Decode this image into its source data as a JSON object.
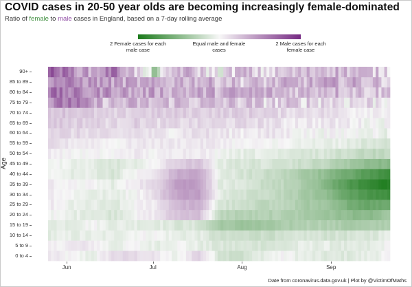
{
  "title": "COVID cases in 20-50 year olds are becoming increasingly female-dominated",
  "subtitle": {
    "prefix": "Ratio of ",
    "female_word": "female",
    "connector": " to ",
    "male_word": "male",
    "suffix": " cases in England, based on a 7-day rolling average"
  },
  "legend": {
    "left_label": "2 Female cases for each male case",
    "mid_label": "Equal male and female cases",
    "right_label": "2 Male cases for each female case",
    "colors": {
      "female": "#1b7a1b",
      "equal": "#f7f7f7",
      "male": "#762a83"
    }
  },
  "caption": "Date from coronavirus.data.gov.uk | Plot by @VictimOfMaths",
  "chart_data": {
    "type": "heatmap",
    "title": "COVID cases in 20-50 year olds are becoming increasingly female-dominated",
    "ylabel": "Age",
    "xlabel": "",
    "x_tick_labels": [
      "Jun",
      "Jul",
      "Aug",
      "Sep"
    ],
    "y_categories": [
      "0 to 4",
      "5 to 9",
      "10 to 14",
      "15 to 19",
      "20 to 24",
      "25 to 29",
      "30 to 34",
      "35 to 39",
      "40 to 44",
      "45 to 49",
      "50 to 54",
      "55 to 59",
      "60 to 64",
      "65 to 69",
      "70 to 74",
      "75 to 79",
      "80 to 84",
      "85 to 89",
      "90+"
    ],
    "color_scale": "log2(male/female): -1 = 2 female cases per male case, 0 = equal, +1 = 2 male cases per female case",
    "date_range": [
      "2020-05-26",
      "2020-09-21"
    ],
    "rows_log2_ratio": [
      [
        0.05,
        0.0,
        -0.05,
        0.1,
        0.1,
        0.05,
        -0.05,
        0.15,
        -0.1,
        -0.15,
        -0.05,
        0.0,
        -0.05,
        -0.08,
        -0.08,
        -0.05,
        0.0
      ],
      [
        0.0,
        0.05,
        0.05,
        -0.05,
        0.0,
        -0.05,
        0.0,
        -0.05,
        -0.1,
        -0.1,
        -0.1,
        -0.1,
        -0.05,
        -0.05,
        -0.08,
        -0.08,
        0.0
      ],
      [
        -0.05,
        -0.05,
        -0.05,
        -0.05,
        0.0,
        0.0,
        -0.05,
        -0.05,
        -0.15,
        -0.15,
        -0.15,
        -0.15,
        -0.1,
        -0.12,
        -0.12,
        -0.1,
        -0.05
      ],
      [
        -0.05,
        -0.05,
        0.0,
        -0.05,
        -0.05,
        -0.05,
        -0.1,
        -0.1,
        -0.3,
        -0.35,
        -0.35,
        -0.3,
        -0.25,
        -0.25,
        -0.3,
        -0.3,
        -0.25
      ],
      [
        0.0,
        -0.05,
        -0.05,
        -0.1,
        0.0,
        0.05,
        0.2,
        0.25,
        -0.2,
        -0.25,
        -0.25,
        -0.25,
        -0.3,
        -0.35,
        -0.4,
        -0.45,
        -0.35
      ],
      [
        0.05,
        -0.05,
        -0.05,
        -0.1,
        0.0,
        0.05,
        0.25,
        0.3,
        -0.1,
        -0.15,
        -0.2,
        -0.2,
        -0.3,
        -0.35,
        -0.5,
        -0.6,
        -0.55
      ],
      [
        0.05,
        0.0,
        -0.05,
        -0.05,
        0.0,
        0.1,
        0.35,
        0.4,
        -0.05,
        -0.1,
        -0.15,
        -0.2,
        -0.3,
        -0.4,
        -0.6,
        -0.75,
        -0.8
      ],
      [
        0.05,
        0.0,
        0.0,
        -0.05,
        0.05,
        0.1,
        0.4,
        0.4,
        -0.05,
        -0.1,
        -0.15,
        -0.2,
        -0.3,
        -0.45,
        -0.7,
        -0.85,
        -0.95
      ],
      [
        0.0,
        -0.05,
        -0.05,
        -0.1,
        0.0,
        0.05,
        0.3,
        0.35,
        -0.05,
        -0.1,
        -0.15,
        -0.2,
        -0.3,
        -0.4,
        -0.55,
        -0.7,
        -0.8
      ],
      [
        0.0,
        -0.05,
        -0.05,
        -0.1,
        -0.05,
        0.0,
        0.15,
        0.2,
        -0.05,
        -0.1,
        -0.1,
        -0.1,
        -0.15,
        -0.2,
        -0.3,
        -0.4,
        -0.45
      ],
      [
        0.05,
        0.0,
        0.0,
        0.0,
        0.05,
        0.0,
        0.05,
        0.05,
        0.0,
        -0.05,
        -0.05,
        -0.05,
        -0.1,
        -0.1,
        -0.15,
        -0.2,
        -0.2
      ],
      [
        0.1,
        0.05,
        0.05,
        0.0,
        0.05,
        0.05,
        0.05,
        0.05,
        0.05,
        0.0,
        0.0,
        0.0,
        -0.05,
        -0.05,
        -0.05,
        -0.1,
        -0.1
      ],
      [
        0.15,
        0.1,
        0.1,
        0.05,
        0.1,
        0.05,
        0.05,
        0.1,
        0.05,
        0.05,
        0.05,
        0.05,
        0.0,
        0.0,
        0.0,
        0.0,
        -0.05
      ],
      [
        0.2,
        0.15,
        0.15,
        0.1,
        0.15,
        0.1,
        0.1,
        0.1,
        0.1,
        0.1,
        0.1,
        0.05,
        0.05,
        0.05,
        0.05,
        0.0,
        0.0
      ],
      [
        0.2,
        0.2,
        0.15,
        0.1,
        0.15,
        0.15,
        0.15,
        0.15,
        0.15,
        0.15,
        0.15,
        0.1,
        0.1,
        0.1,
        0.05,
        0.05,
        0.05
      ],
      [
        0.4,
        0.6,
        0.3,
        0.2,
        0.25,
        0.2,
        0.25,
        0.2,
        0.2,
        0.2,
        0.15,
        0.15,
        0.15,
        0.15,
        0.1,
        0.1,
        0.1
      ],
      [
        0.6,
        0.5,
        0.4,
        0.45,
        0.3,
        0.35,
        0.3,
        0.3,
        0.3,
        0.3,
        0.3,
        0.25,
        0.25,
        0.3,
        0.25,
        0.2,
        0.2
      ],
      [
        0.5,
        0.45,
        0.4,
        0.35,
        0.3,
        0.25,
        0.3,
        0.3,
        0.25,
        0.2,
        0.2,
        0.25,
        0.25,
        0.3,
        0.3,
        0.25,
        0.2
      ],
      [
        0.7,
        0.5,
        0.3,
        0.6,
        0.2,
        -0.3,
        0.3,
        0.2,
        0.0,
        0.25,
        0.1,
        0.15,
        0.2,
        0.3,
        0.25,
        0.2,
        0.15
      ]
    ]
  }
}
